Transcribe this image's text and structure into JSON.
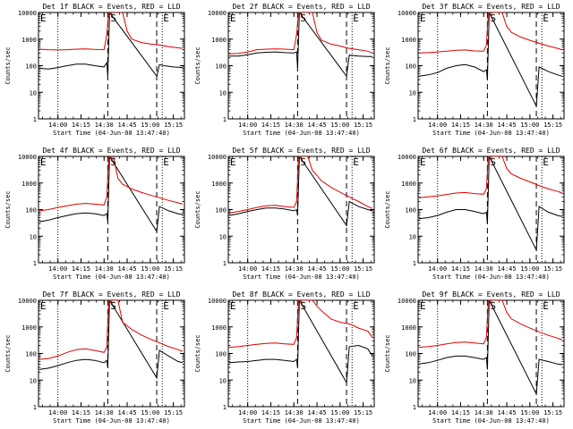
{
  "figure": {
    "start_time_label": "Start Time (04-Jun-08 13:47:40)"
  },
  "panel_defaults": {
    "ylabel": "Counts/sec",
    "xlim": [
      13.79,
      15.37
    ],
    "ylim": [
      1,
      10000
    ],
    "x_ticks": [
      14.0,
      14.25,
      14.5,
      14.75,
      15.0,
      15.25
    ],
    "x_tick_labels": [
      "14:00",
      "14:15",
      "14:30",
      "14:45",
      "15:00",
      "15:15"
    ],
    "y_ticks": [
      1,
      10,
      100,
      1000,
      10000
    ],
    "y_tick_labels": [
      "1",
      "10",
      "100",
      "1000",
      "10000"
    ],
    "dotted_lines": [
      14.0,
      15.13
    ],
    "dashed_lines": [
      14.54,
      15.07
    ],
    "markers": [
      {
        "label": "E",
        "x": 13.8
      },
      {
        "label": "S",
        "x": 14.56
      },
      {
        "label": "E",
        "x": 15.13
      }
    ]
  },
  "colors": {
    "events": "#000000",
    "lld": "#e00000",
    "axes": "#000000"
  },
  "chart_data": [
    {
      "type": "line",
      "title": "Det 1f BLACK = Events, RED = LLD",
      "series": [
        {
          "name": "Events",
          "color": "#000000",
          "x": [
            13.8,
            13.9,
            14.0,
            14.1,
            14.2,
            14.3,
            14.4,
            14.5,
            14.53,
            14.54,
            14.56,
            15.07,
            15.1,
            15.15,
            15.25,
            15.35
          ],
          "y": [
            80,
            75,
            85,
            100,
            115,
            115,
            100,
            90,
            130,
            40,
            10000,
            40,
            110,
            100,
            90,
            85
          ]
        },
        {
          "name": "LLD",
          "color": "#e00000",
          "x": [
            13.8,
            13.9,
            14.0,
            14.1,
            14.2,
            14.3,
            14.4,
            14.5,
            14.53,
            14.55,
            14.57,
            14.7,
            14.75,
            14.8,
            14.9,
            15.0,
            15.1,
            15.2,
            15.3,
            15.35
          ],
          "y": [
            420,
            400,
            390,
            400,
            420,
            430,
            410,
            400,
            1500,
            9000,
            10000,
            10000,
            2000,
            1000,
            750,
            650,
            600,
            520,
            470,
            450
          ]
        }
      ]
    },
    {
      "type": "line",
      "title": "Det 2f BLACK = Events, RED = LLD",
      "series": [
        {
          "name": "Events",
          "color": "#000000",
          "x": [
            13.8,
            13.9,
            14.0,
            14.1,
            14.2,
            14.3,
            14.4,
            14.5,
            14.53,
            14.54,
            14.56,
            15.07,
            15.1,
            15.2,
            15.3,
            15.35
          ],
          "y": [
            230,
            230,
            260,
            300,
            320,
            330,
            310,
            300,
            330,
            80,
            10000,
            40,
            250,
            230,
            220,
            220
          ]
        },
        {
          "name": "LLD",
          "color": "#e00000",
          "x": [
            13.8,
            13.9,
            14.0,
            14.1,
            14.2,
            14.3,
            14.4,
            14.5,
            14.53,
            14.55,
            14.57,
            14.7,
            14.75,
            14.8,
            14.9,
            15.0,
            15.1,
            15.2,
            15.3,
            15.35
          ],
          "y": [
            280,
            290,
            330,
            400,
            420,
            430,
            420,
            400,
            1500,
            9000,
            10000,
            10000,
            1800,
            900,
            650,
            550,
            450,
            400,
            350,
            300
          ]
        }
      ]
    },
    {
      "type": "line",
      "title": "Det 3f BLACK = Events, RED = LLD",
      "series": [
        {
          "name": "Events",
          "color": "#000000",
          "x": [
            13.8,
            13.9,
            14.0,
            14.1,
            14.2,
            14.3,
            14.4,
            14.5,
            14.53,
            14.54,
            14.56,
            15.07,
            15.1,
            15.2,
            15.3,
            15.35
          ],
          "y": [
            40,
            45,
            55,
            80,
            100,
            110,
            90,
            60,
            70,
            30,
            10000,
            3,
            90,
            60,
            45,
            40
          ]
        },
        {
          "name": "LLD",
          "color": "#e00000",
          "x": [
            13.8,
            13.9,
            14.0,
            14.1,
            14.2,
            14.3,
            14.4,
            14.5,
            14.53,
            14.55,
            14.57,
            14.7,
            14.75,
            14.8,
            14.9,
            15.0,
            15.1,
            15.2,
            15.3,
            15.35
          ],
          "y": [
            300,
            310,
            330,
            350,
            380,
            390,
            360,
            350,
            600,
            9000,
            10000,
            10000,
            3000,
            1800,
            1200,
            900,
            700,
            550,
            450,
            400
          ]
        }
      ]
    },
    {
      "type": "line",
      "title": "Det 4f BLACK = Events, RED = LLD",
      "series": [
        {
          "name": "Events",
          "color": "#000000",
          "x": [
            13.8,
            13.9,
            14.0,
            14.1,
            14.2,
            14.3,
            14.4,
            14.5,
            14.53,
            14.54,
            14.56,
            15.07,
            15.1,
            15.2,
            15.3,
            15.35
          ],
          "y": [
            35,
            40,
            50,
            60,
            70,
            75,
            70,
            60,
            70,
            35,
            10000,
            15,
            130,
            90,
            70,
            65
          ]
        },
        {
          "name": "LLD",
          "color": "#e00000",
          "x": [
            13.8,
            13.9,
            14.0,
            14.1,
            14.2,
            14.3,
            14.4,
            14.5,
            14.53,
            14.55,
            14.57,
            14.6,
            14.65,
            14.7,
            14.8,
            14.9,
            15.0,
            15.1,
            15.2,
            15.3,
            15.35
          ],
          "y": [
            90,
            100,
            120,
            140,
            160,
            170,
            160,
            150,
            300,
            9000,
            10000,
            10000,
            1500,
            900,
            600,
            450,
            350,
            280,
            220,
            180,
            160
          ]
        }
      ]
    },
    {
      "type": "line",
      "title": "Det 5f BLACK = Events, RED = LLD",
      "series": [
        {
          "name": "Events",
          "color": "#000000",
          "x": [
            13.8,
            13.9,
            14.0,
            14.1,
            14.2,
            14.3,
            14.4,
            14.5,
            14.53,
            14.54,
            14.56,
            15.07,
            15.1,
            15.2,
            15.3,
            15.35
          ],
          "y": [
            60,
            70,
            85,
            100,
            115,
            115,
            105,
            90,
            100,
            60,
            10000,
            25,
            200,
            130,
            100,
            90
          ]
        },
        {
          "name": "LLD",
          "color": "#e00000",
          "x": [
            13.8,
            13.9,
            14.0,
            14.1,
            14.2,
            14.3,
            14.4,
            14.5,
            14.53,
            14.55,
            14.57,
            14.65,
            14.7,
            14.8,
            14.9,
            15.0,
            15.1,
            15.2,
            15.3,
            15.35
          ],
          "y": [
            75,
            85,
            100,
            120,
            140,
            145,
            130,
            120,
            200,
            9000,
            10000,
            10000,
            3000,
            1200,
            700,
            450,
            300,
            200,
            130,
            110
          ]
        }
      ]
    },
    {
      "type": "line",
      "title": "Det 6f BLACK = Events, RED = LLD",
      "series": [
        {
          "name": "Events",
          "color": "#000000",
          "x": [
            13.8,
            13.9,
            14.0,
            14.1,
            14.2,
            14.3,
            14.4,
            14.5,
            14.53,
            14.54,
            14.56,
            15.07,
            15.1,
            15.2,
            15.3,
            15.35
          ],
          "y": [
            45,
            50,
            60,
            80,
            100,
            100,
            85,
            70,
            80,
            30,
            10000,
            3,
            130,
            80,
            60,
            55
          ]
        },
        {
          "name": "LLD",
          "color": "#e00000",
          "x": [
            13.8,
            13.9,
            14.0,
            14.1,
            14.2,
            14.3,
            14.4,
            14.5,
            14.53,
            14.55,
            14.57,
            14.7,
            14.75,
            14.8,
            14.9,
            15.0,
            15.1,
            15.2,
            15.3,
            15.35
          ],
          "y": [
            280,
            300,
            330,
            370,
            420,
            440,
            400,
            380,
            600,
            9000,
            10000,
            10000,
            3500,
            2200,
            1500,
            1100,
            800,
            600,
            480,
            420
          ]
        }
      ]
    },
    {
      "type": "line",
      "title": "Det 7f BLACK = Events, RED = LLD",
      "series": [
        {
          "name": "Events",
          "color": "#000000",
          "x": [
            13.8,
            13.9,
            14.0,
            14.1,
            14.2,
            14.3,
            14.4,
            14.5,
            14.53,
            14.54,
            14.56,
            15.07,
            15.1,
            15.2,
            15.3,
            15.35
          ],
          "y": [
            25,
            28,
            35,
            45,
            55,
            60,
            55,
            45,
            55,
            30,
            10000,
            12,
            130,
            80,
            50,
            45
          ]
        },
        {
          "name": "LLD",
          "color": "#e00000",
          "x": [
            13.8,
            13.9,
            14.0,
            14.1,
            14.2,
            14.3,
            14.4,
            14.5,
            14.53,
            14.55,
            14.57,
            14.65,
            14.7,
            14.8,
            14.9,
            15.0,
            15.1,
            15.2,
            15.3,
            15.35
          ],
          "y": [
            60,
            65,
            80,
            110,
            140,
            150,
            130,
            110,
            180,
            9000,
            10000,
            10000,
            1500,
            800,
            500,
            350,
            250,
            180,
            140,
            120
          ]
        }
      ]
    },
    {
      "type": "line",
      "title": "Det 8f BLACK = Events, RED = LLD",
      "series": [
        {
          "name": "Events",
          "color": "#000000",
          "x": [
            13.8,
            13.9,
            14.0,
            14.1,
            14.2,
            14.3,
            14.4,
            14.5,
            14.53,
            14.54,
            14.56,
            15.07,
            15.1,
            15.2,
            15.3,
            15.35
          ],
          "y": [
            45,
            48,
            50,
            55,
            60,
            60,
            55,
            50,
            60,
            30,
            10000,
            8,
            180,
            200,
            150,
            80
          ]
        },
        {
          "name": "LLD",
          "color": "#e00000",
          "x": [
            13.8,
            13.9,
            14.0,
            14.1,
            14.2,
            14.3,
            14.4,
            14.5,
            14.53,
            14.55,
            14.57,
            14.7,
            14.75,
            14.8,
            14.9,
            15.0,
            15.1,
            15.15,
            15.2,
            15.3,
            15.35
          ],
          "y": [
            170,
            180,
            200,
            220,
            240,
            250,
            230,
            220,
            400,
            9000,
            10000,
            10000,
            6000,
            4000,
            2000,
            1500,
            1300,
            1100,
            900,
            700,
            400
          ]
        }
      ]
    },
    {
      "type": "line",
      "title": "Det 9f BLACK = Events, RED = LLD",
      "series": [
        {
          "name": "Events",
          "color": "#000000",
          "x": [
            13.8,
            13.9,
            14.0,
            14.1,
            14.2,
            14.3,
            14.4,
            14.5,
            14.53,
            14.54,
            14.56,
            15.07,
            15.1,
            15.2,
            15.3,
            15.35
          ],
          "y": [
            40,
            45,
            55,
            70,
            80,
            80,
            70,
            60,
            70,
            25,
            10000,
            3,
            60,
            50,
            40,
            38
          ]
        },
        {
          "name": "LLD",
          "color": "#e00000",
          "x": [
            13.8,
            13.9,
            14.0,
            14.1,
            14.2,
            14.3,
            14.4,
            14.5,
            14.53,
            14.55,
            14.57,
            14.7,
            14.75,
            14.8,
            14.9,
            15.0,
            15.1,
            15.2,
            15.3,
            15.35
          ],
          "y": [
            170,
            180,
            200,
            230,
            260,
            270,
            250,
            230,
            400,
            9000,
            10000,
            10000,
            3500,
            2000,
            1300,
            900,
            650,
            480,
            380,
            330
          ]
        }
      ]
    }
  ]
}
